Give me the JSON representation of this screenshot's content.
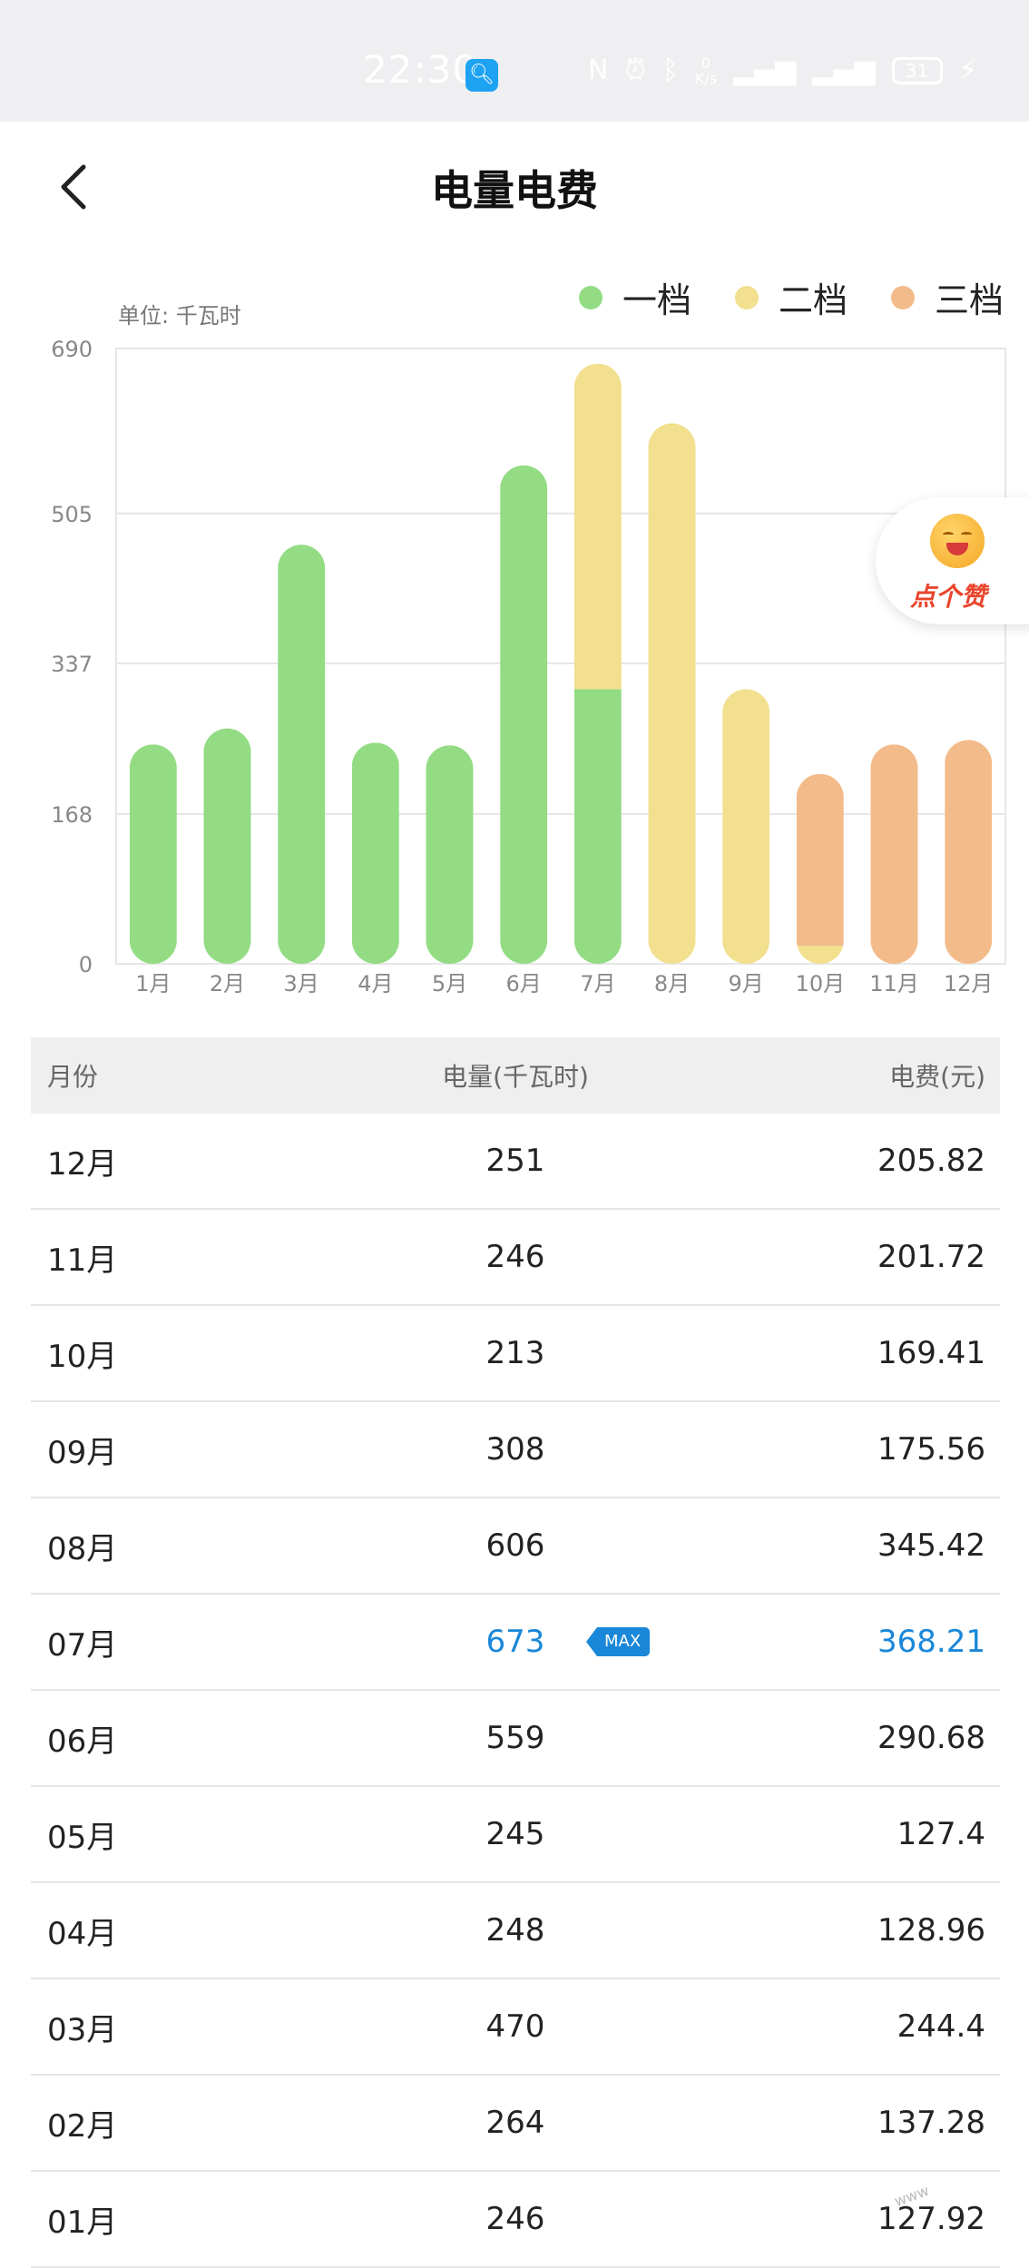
{
  "status_bar": {
    "time": "22:30",
    "speed_value": "0",
    "speed_unit": "K/s",
    "battery": "31",
    "icons": [
      "nfc-icon",
      "alarm-icon",
      "bluetooth-icon",
      "vibrate-icon",
      "signal-5g-icon",
      "signal-4g-icon",
      "battery-icon",
      "charging-icon"
    ]
  },
  "header": {
    "title": "电量电费"
  },
  "chart": {
    "unit_label": "单位: 千瓦时"
  },
  "like_button": {
    "label": "点个赞"
  },
  "colors": {
    "tier1": "#93dc84",
    "tier2": "#f2e08f",
    "tier3": "#f3bb8a",
    "accent": "#1a87d8"
  },
  "chart_data": {
    "type": "bar",
    "stacked": true,
    "categories": [
      "1月",
      "2月",
      "3月",
      "4月",
      "5月",
      "6月",
      "7月",
      "8月",
      "9月",
      "10月",
      "11月",
      "12月"
    ],
    "series": [
      {
        "name": "一档",
        "color": "#93dc84",
        "values": [
          246,
          264,
          470,
          248,
          245,
          559,
          308,
          0,
          0,
          0,
          0,
          0
        ]
      },
      {
        "name": "二档",
        "color": "#f2e08f",
        "values": [
          0,
          0,
          0,
          0,
          0,
          0,
          365,
          606,
          308,
          20,
          0,
          0
        ]
      },
      {
        "name": "三档",
        "color": "#f3bb8a",
        "values": [
          0,
          0,
          0,
          0,
          0,
          0,
          0,
          0,
          0,
          193,
          246,
          251
        ]
      }
    ],
    "yticks": [
      0,
      168,
      337,
      505,
      690
    ],
    "ylim": [
      0,
      690
    ],
    "grid": true,
    "legend_position": "top-right"
  },
  "table": {
    "headers": [
      "月份",
      "电量(千瓦时)",
      "电费(元)"
    ],
    "max_badge": "MAX",
    "rows": [
      {
        "month": "12月",
        "usage": "251",
        "cost": "205.82",
        "max": false
      },
      {
        "month": "11月",
        "usage": "246",
        "cost": "201.72",
        "max": false
      },
      {
        "month": "10月",
        "usage": "213",
        "cost": "169.41",
        "max": false
      },
      {
        "month": "09月",
        "usage": "308",
        "cost": "175.56",
        "max": false
      },
      {
        "month": "08月",
        "usage": "606",
        "cost": "345.42",
        "max": false
      },
      {
        "month": "07月",
        "usage": "673",
        "cost": "368.21",
        "max": true
      },
      {
        "month": "06月",
        "usage": "559",
        "cost": "290.68",
        "max": false
      },
      {
        "month": "05月",
        "usage": "245",
        "cost": "127.4",
        "max": false
      },
      {
        "month": "04月",
        "usage": "248",
        "cost": "128.96",
        "max": false
      },
      {
        "month": "03月",
        "usage": "470",
        "cost": "244.4",
        "max": false
      },
      {
        "month": "02月",
        "usage": "264",
        "cost": "137.28",
        "max": false
      },
      {
        "month": "01月",
        "usage": "246",
        "cost": "127.92",
        "max": false
      }
    ]
  }
}
